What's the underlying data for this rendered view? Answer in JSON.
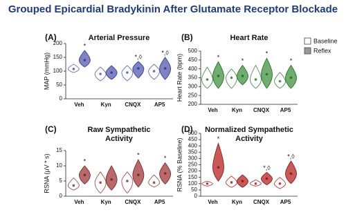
{
  "figure_title": "Grouped Epicardial Bradykinin After Glutamate Receptor Blockade",
  "chart_data": [
    {
      "type": "violin",
      "label": "(A)",
      "title_lines": [
        "Arterial Pressure"
      ],
      "y_label": "MAP (mmHg)",
      "categories": [
        "Veh",
        "Kyn",
        "CNQX",
        "AP5"
      ],
      "ylim": [
        0,
        200
      ],
      "yticks": [
        0,
        50,
        100,
        150,
        200
      ],
      "series": [
        {
          "name": "Baseline",
          "color": "#ffffff",
          "edge": "#6b6fb5",
          "values": [
            108,
            90,
            95,
            100
          ],
          "min": [
            95,
            65,
            65,
            70
          ],
          "max": [
            125,
            115,
            120,
            125
          ]
        },
        {
          "name": "Reflex",
          "color": "#7f83c4",
          "edge": "#3b3f8f",
          "values": [
            140,
            95,
            110,
            110
          ],
          "min": [
            115,
            70,
            75,
            70
          ],
          "max": [
            175,
            120,
            135,
            150
          ]
        }
      ],
      "annotations": [
        {
          "category": "Veh",
          "series": "Reflex",
          "text": "*"
        },
        {
          "category": "CNQX",
          "series": "Reflex",
          "text": "*,◊"
        },
        {
          "category": "AP5",
          "series": "Reflex",
          "text": "*,◊"
        }
      ]
    },
    {
      "type": "violin",
      "label": "(B)",
      "title_lines": [
        "Heart Rate"
      ],
      "y_label": "Heart Rate (bpm)",
      "categories": [
        "Veh",
        "Kyn",
        "CNQX",
        "AP5"
      ],
      "ylim": [
        200,
        500
      ],
      "yticks": [
        200,
        250,
        300,
        350,
        400,
        450,
        500
      ],
      "series": [
        {
          "name": "Baseline",
          "color": "#ffffff",
          "edge": "#4f8f4f",
          "values": [
            340,
            350,
            340,
            330
          ],
          "min": [
            290,
            290,
            290,
            290
          ],
          "max": [
            410,
            400,
            420,
            380
          ]
        },
        {
          "name": "Reflex",
          "color": "#6fae6f",
          "edge": "#2f6f2f",
          "values": [
            360,
            360,
            370,
            350
          ],
          "min": [
            290,
            310,
            290,
            290
          ],
          "max": [
            440,
            420,
            460,
            420
          ]
        }
      ],
      "annotations": [
        {
          "category": "Veh",
          "series": "Reflex",
          "text": "*"
        },
        {
          "category": "Kyn",
          "series": "Reflex",
          "text": "*"
        },
        {
          "category": "CNQX",
          "series": "Reflex",
          "text": "*"
        },
        {
          "category": "AP5",
          "series": "Reflex",
          "text": "*"
        }
      ]
    },
    {
      "type": "violin",
      "label": "(C)",
      "title_lines": [
        "Raw Sympathetic",
        "Activity"
      ],
      "y_label": "RSNA (μV * s)",
      "categories": [
        "Veh",
        "Kyn",
        "CNQX",
        "AP5"
      ],
      "ylim": [
        0,
        15
      ],
      "yticks": [
        0,
        5,
        10,
        15
      ],
      "series": [
        {
          "name": "Baseline",
          "color": "#ffffff",
          "edge": "#a05050",
          "values": [
            3.5,
            4.5,
            5,
            4.5
          ],
          "min": [
            2,
            1,
            1,
            3
          ],
          "max": [
            6,
            8,
            8,
            7
          ]
        },
        {
          "name": "Reflex",
          "color": "#b86a6a",
          "edge": "#7a2a2a",
          "values": [
            7,
            5.5,
            7,
            7.5
          ],
          "min": [
            4,
            2,
            3,
            4
          ],
          "max": [
            10,
            10,
            12,
            11
          ]
        }
      ],
      "annotations": [
        {
          "category": "Veh",
          "series": "Reflex",
          "text": "*"
        },
        {
          "category": "CNQX",
          "series": "Reflex",
          "text": "*"
        },
        {
          "category": "AP5",
          "series": "Reflex",
          "text": "*"
        }
      ]
    },
    {
      "type": "violin",
      "label": "(D)",
      "title_lines": [
        "Normalized Sympathetic",
        "Activity"
      ],
      "y_label": "RSNA (% Baseline)",
      "categories": [
        "Veh",
        "Kyn",
        "CNQX",
        "AP5"
      ],
      "ylim": [
        0,
        500
      ],
      "yticks": [
        0,
        50,
        100,
        150,
        200,
        250,
        300,
        350,
        400,
        450,
        500
      ],
      "series": [
        {
          "name": "Baseline",
          "color": "#ffffff",
          "edge": "#b04040",
          "values": [
            100,
            110,
            100,
            100
          ],
          "min": [
            80,
            70,
            80,
            60
          ],
          "max": [
            120,
            160,
            130,
            150
          ]
        },
        {
          "name": "Reflex",
          "color": "#c85a5a",
          "edge": "#8a2020",
          "values": [
            230,
            120,
            140,
            180
          ],
          "min": [
            120,
            70,
            90,
            100
          ],
          "max": [
            420,
            170,
            190,
            280
          ]
        }
      ],
      "annotations": [
        {
          "category": "Veh",
          "series": "Reflex",
          "text": "*"
        },
        {
          "category": "CNQX",
          "series": "Reflex",
          "text": "*,◊"
        },
        {
          "category": "AP5",
          "series": "Reflex",
          "text": "*,◊"
        }
      ]
    }
  ]
}
